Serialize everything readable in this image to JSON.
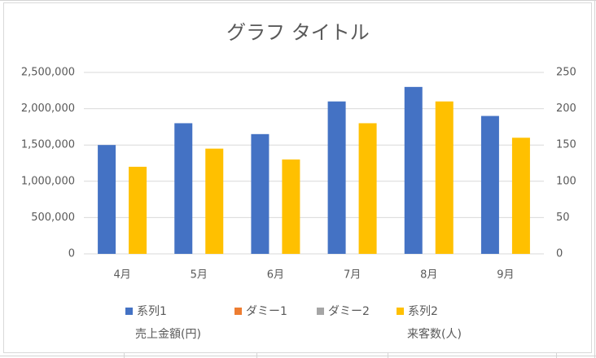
{
  "chart_data": {
    "type": "bar",
    "title": "グラフ タイトル",
    "categories": [
      "4月",
      "5月",
      "6月",
      "7月",
      "8月",
      "9月"
    ],
    "series": [
      {
        "name": "系列1",
        "color": "#4472c4",
        "values": [
          1500000,
          1800000,
          1650000,
          2100000,
          2300000,
          1900000
        ]
      },
      {
        "name": "ダミー1",
        "color": "#ed7d31",
        "values": [
          null,
          null,
          null,
          null,
          null,
          null
        ]
      },
      {
        "name": "ダミー2",
        "color": "#a5a5a5",
        "axis": "y2",
        "values": [
          null,
          null,
          null,
          null,
          null,
          null
        ]
      },
      {
        "name": "系列2",
        "color": "#ffc000",
        "axis": "y2",
        "values": [
          120,
          145,
          130,
          180,
          210,
          160
        ]
      }
    ],
    "ylabel": "売上金額(円)",
    "y2label": "来客数(人)",
    "ylim": [
      0,
      2500000
    ],
    "yticks": [
      0,
      {
        "value": 500000,
        "label": "500,000"
      },
      {
        "value": 1000000,
        "label": "1,000,000"
      },
      {
        "value": 1500000,
        "label": "1,500,000"
      },
      {
        "value": 2000000,
        "label": "2,000,000"
      },
      {
        "value": 2500000,
        "label": "2,500,000"
      }
    ],
    "y2lim": [
      0,
      250
    ],
    "y2ticks": [
      0,
      50,
      100,
      150,
      200,
      250
    ],
    "grid": true,
    "legend": "bottom"
  }
}
